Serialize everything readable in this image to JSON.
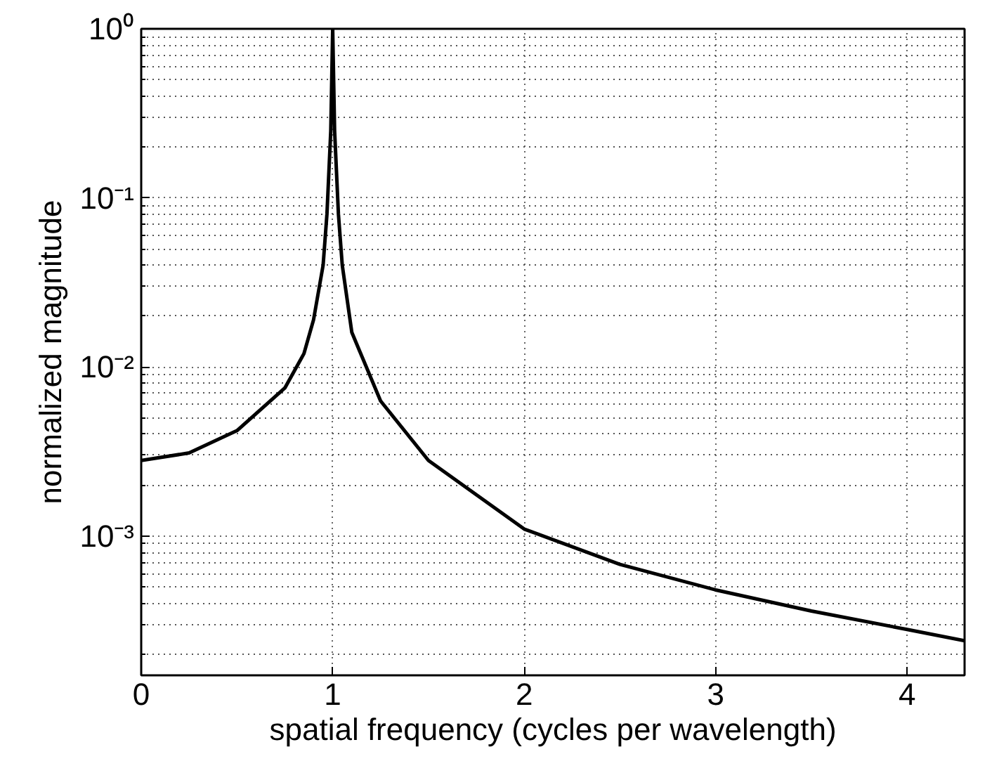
{
  "chart_data": {
    "type": "line",
    "xlabel": "spatial frequency (cycles per wavelength)",
    "ylabel": "normalized magnitude",
    "log": "y",
    "grid": true,
    "marker": "none",
    "line_style": "solid",
    "x": [
      0,
      0.25,
      0.5,
      0.75,
      0.85,
      0.9,
      0.95,
      0.97,
      0.99,
      1.0,
      1.01,
      1.03,
      1.05,
      1.1,
      1.25,
      1.5,
      2,
      2.5,
      3,
      3.5,
      4,
      4.3
    ],
    "series": [
      {
        "color": "#000000",
        "values": [
          0.0028,
          0.0031,
          0.0042,
          0.0075,
          0.012,
          0.019,
          0.04,
          0.08,
          0.25,
          1,
          0.25,
          0.08,
          0.04,
          0.016,
          0.0063,
          0.0028,
          0.0011,
          0.00068,
          0.00048,
          0.00036,
          0.00028,
          0.00024
        ]
      }
    ],
    "xlim": [
      0,
      4.3
    ],
    "ylim": [
      0.00015,
      1
    ],
    "xticks": [
      0,
      1,
      2,
      3,
      4
    ],
    "yticks": [
      {
        "value": 0.001,
        "label": "10⁻³"
      },
      {
        "value": 0.01,
        "label": "10⁻²"
      },
      {
        "value": 0.1,
        "label": "10⁻¹"
      },
      {
        "value": 1,
        "label": "10⁰"
      }
    ]
  }
}
